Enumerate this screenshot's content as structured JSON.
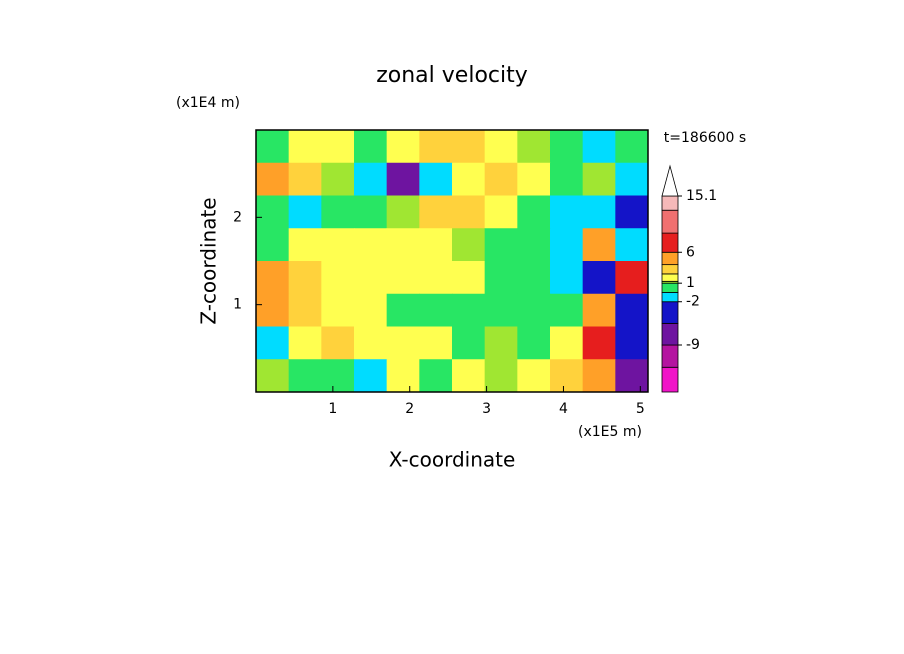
{
  "chart_data": {
    "type": "contourf",
    "title": "zonal velocity",
    "x_label": "X-coordinate",
    "y_label": "Z-coordinate",
    "x_unit_label": "(x1E5 m)",
    "y_unit_label": "(x1E4 m)",
    "time_label": "t=186600 s",
    "xlim": [
      0,
      5.1
    ],
    "ylim": [
      0,
      3
    ],
    "xticks": [
      1,
      2,
      3,
      4,
      5
    ],
    "yticks": [
      1,
      2
    ],
    "levels": [
      -16.6,
      -12.6,
      -9,
      -5.5,
      -2,
      -0.5,
      1,
      1.3,
      2.5,
      4,
      6,
      9.1,
      12.8,
      15.1
    ],
    "colors": [
      "#f014c8",
      "#b414a0",
      "#6e14a0",
      "#1414c8",
      "#00dcff",
      "#28e664",
      "#a0e632",
      "#ffff50",
      "#ffd23c",
      "#ffa028",
      "#e61e1e",
      "#f07070",
      "#f5b9b9"
    ],
    "extend_color": "#ffffff",
    "colorbar_ticks": [
      15.1,
      6,
      1,
      -2,
      -9
    ],
    "field_values": [
      [
        0.5,
        2,
        1.5,
        0.5,
        2,
        3,
        3,
        2,
        1,
        0.5,
        -1,
        0.5
      ],
      [
        4,
        3,
        1,
        -1,
        -6,
        -1,
        1.5,
        3,
        1.5,
        0.5,
        1,
        -1
      ],
      [
        0.5,
        -1,
        0.5,
        0.5,
        1,
        3,
        3,
        2,
        0.5,
        -1,
        -2,
        -3
      ],
      [
        0,
        1.5,
        1.5,
        1.5,
        1.5,
        1.5,
        1,
        0.5,
        0.5,
        -1,
        4,
        -1
      ],
      [
        4,
        3,
        1.5,
        1.5,
        1.5,
        1.5,
        2,
        0.5,
        0.5,
        -2,
        -5,
        7
      ],
      [
        5,
        3,
        2,
        1.5,
        0.5,
        0.5,
        0.5,
        0.5,
        0.5,
        -0.5,
        4,
        -3
      ],
      [
        -1,
        1.5,
        3,
        2,
        2,
        1.5,
        0.5,
        1,
        0.5,
        1.5,
        6,
        -4
      ],
      [
        1,
        0.5,
        0.5,
        -1,
        2,
        0.5,
        1.5,
        1,
        2,
        3,
        5,
        -6
      ]
    ]
  }
}
